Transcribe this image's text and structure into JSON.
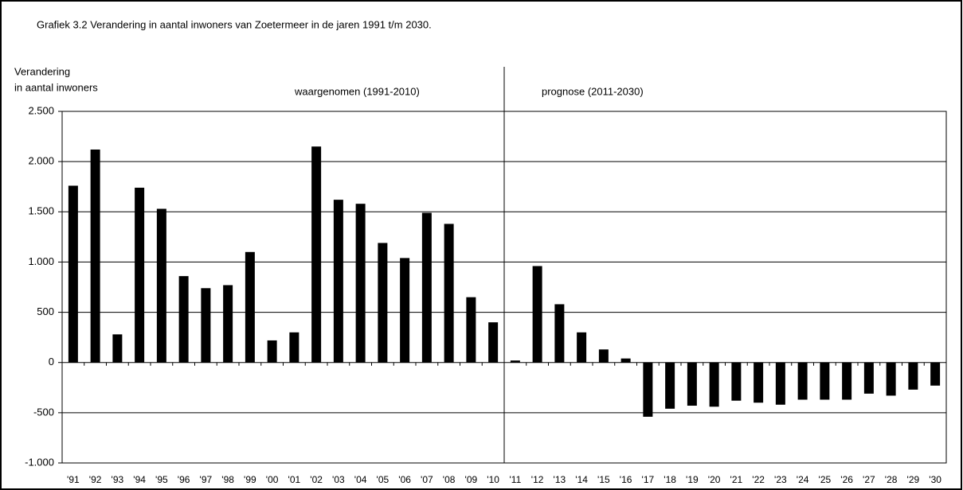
{
  "chart_data": {
    "type": "bar",
    "title": "Grafiek 3.2  Verandering in aantal inwoners van Zoetermeer in de jaren 1991 t/m 2030.",
    "ylabel": [
      "Verandering",
      "in aantal inwoners"
    ],
    "annotations": [
      "waargenomen (1991-2010)",
      "prognose (2011-2030)"
    ],
    "categories": [
      "'91",
      "'92",
      "'93",
      "'94",
      "'95",
      "'96",
      "'97",
      "'98",
      "'99",
      "'00",
      "'01",
      "'02",
      "'03",
      "'04",
      "'05",
      "'06",
      "'07",
      "'08",
      "'09",
      "'10",
      "'11",
      "'12",
      "'13",
      "'14",
      "'15",
      "'16",
      "'17",
      "'18",
      "'19",
      "'20",
      "'21",
      "'22",
      "'23",
      "'24",
      "'25",
      "'26",
      "'27",
      "'28",
      "'29",
      "'30"
    ],
    "values": [
      1760,
      2120,
      280,
      1740,
      1530,
      860,
      740,
      770,
      1100,
      220,
      300,
      2150,
      1620,
      1580,
      1190,
      1040,
      1490,
      1380,
      650,
      400,
      20,
      960,
      580,
      300,
      130,
      40,
      -540,
      -460,
      -430,
      -440,
      -380,
      -400,
      -420,
      -370,
      -370,
      -370,
      -310,
      -330,
      -270,
      -230
    ],
    "color": "#000000",
    "ylim": [
      -1000,
      2500
    ],
    "yticks": [
      {
        "value": -1000,
        "label": "-1.000"
      },
      -500,
      0,
      500,
      {
        "value": 1000,
        "label": "1.000"
      },
      {
        "value": 1500,
        "label": "1.500"
      },
      {
        "value": 2000,
        "label": "2.000"
      },
      {
        "value": 2500,
        "label": "2.500"
      }
    ],
    "grid": true
  }
}
